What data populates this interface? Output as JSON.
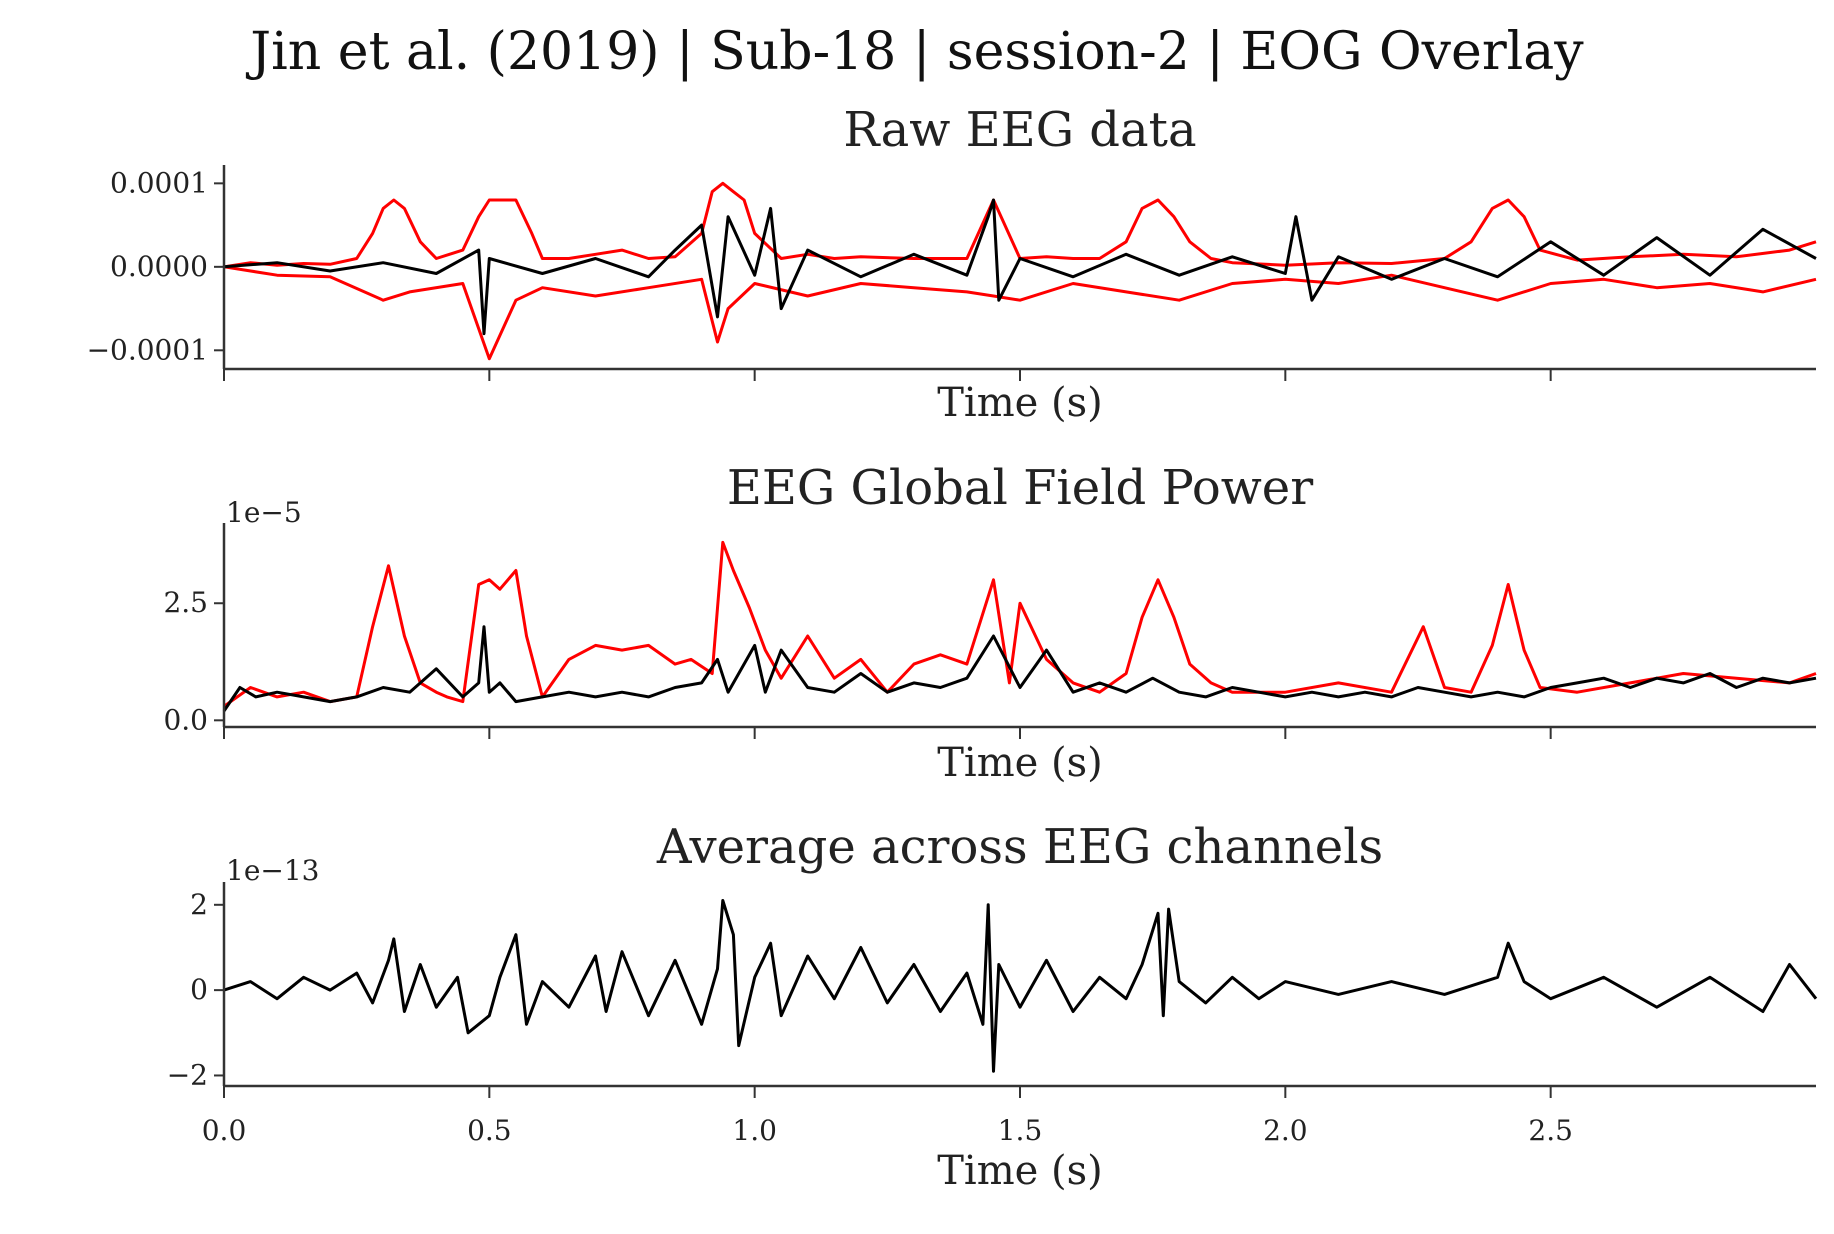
{
  "figure": {
    "suptitle": "Jin et al. (2019) | Sub-18 | session-2 | EOG Overlay",
    "colors": {
      "eog": "#ff0000",
      "clean": "#000000",
      "axis": "#333333"
    }
  },
  "chart_data": [
    {
      "type": "line",
      "title": "Raw EEG data",
      "xlabel": "Time (s)",
      "ylabel": "",
      "offset_label": "",
      "xlim": [
        0,
        3
      ],
      "ylim": [
        -0.00012,
        0.00011
      ],
      "yticks": [
        -0.0001,
        0.0,
        0.0001
      ],
      "ytick_labels": [
        "−0.0001",
        "0.0000",
        "0.0001"
      ],
      "xticks": [
        0.0,
        0.5,
        1.0,
        1.5,
        2.0,
        2.5
      ],
      "xtick_labels": [
        "",
        "",
        "",
        "",
        "",
        ""
      ],
      "series": [
        {
          "color": "#ff0000",
          "width": 3,
          "x": [
            0,
            0.05,
            0.1,
            0.15,
            0.2,
            0.25,
            0.28,
            0.3,
            0.32,
            0.34,
            0.37,
            0.4,
            0.45,
            0.48,
            0.5,
            0.52,
            0.55,
            0.58,
            0.6,
            0.65,
            0.7,
            0.75,
            0.8,
            0.85,
            0.9,
            0.92,
            0.94,
            0.96,
            0.98,
            1.0,
            1.05,
            1.1,
            1.15,
            1.2,
            1.3,
            1.4,
            1.45,
            1.5,
            1.55,
            1.6,
            1.65,
            1.7,
            1.73,
            1.76,
            1.79,
            1.82,
            1.86,
            1.9,
            2.0,
            2.1,
            2.2,
            2.3,
            2.35,
            2.39,
            2.42,
            2.45,
            2.48,
            2.55,
            2.65,
            2.75,
            2.85,
            2.95,
            3.0
          ],
          "y": [
            0,
            5e-06,
            2e-06,
            4e-06,
            3e-06,
            1e-05,
            4e-05,
            7e-05,
            8e-05,
            7e-05,
            3e-05,
            1e-05,
            2e-05,
            6e-05,
            8e-05,
            8e-05,
            8e-05,
            4e-05,
            1e-05,
            1e-05,
            1.5e-05,
            2e-05,
            1e-05,
            1.2e-05,
            4e-05,
            9e-05,
            0.0001,
            9e-05,
            8e-05,
            4e-05,
            1e-05,
            1.5e-05,
            1e-05,
            1.2e-05,
            1e-05,
            1e-05,
            8e-05,
            1e-05,
            1.2e-05,
            1e-05,
            1e-05,
            3e-05,
            7e-05,
            8e-05,
            6e-05,
            3e-05,
            1e-05,
            5e-06,
            2e-06,
            5e-06,
            4e-06,
            1e-05,
            3e-05,
            7e-05,
            8e-05,
            6e-05,
            2e-05,
            8e-06,
            1.2e-05,
            1.5e-05,
            1.2e-05,
            2e-05,
            3e-05
          ]
        },
        {
          "color": "#ff0000",
          "width": 3,
          "x": [
            0,
            0.1,
            0.2,
            0.3,
            0.35,
            0.45,
            0.5,
            0.55,
            0.6,
            0.7,
            0.8,
            0.9,
            0.93,
            0.95,
            1.0,
            1.1,
            1.2,
            1.3,
            1.4,
            1.45,
            1.5,
            1.6,
            1.7,
            1.8,
            1.9,
            2.0,
            2.1,
            2.2,
            2.3,
            2.4,
            2.5,
            2.6,
            2.7,
            2.8,
            2.9,
            3.0
          ],
          "y": [
            0,
            -1e-05,
            -1.2e-05,
            -4e-05,
            -3e-05,
            -2e-05,
            -0.00011,
            -4e-05,
            -2.5e-05,
            -3.5e-05,
            -2.5e-05,
            -1.5e-05,
            -9e-05,
            -5e-05,
            -2e-05,
            -3.5e-05,
            -2e-05,
            -2.5e-05,
            -3e-05,
            -3.5e-05,
            -4e-05,
            -2e-05,
            -3e-05,
            -4e-05,
            -2e-05,
            -1.5e-05,
            -2e-05,
            -1e-05,
            -2.5e-05,
            -4e-05,
            -2e-05,
            -1.5e-05,
            -2.5e-05,
            -2e-05,
            -3e-05,
            -1.5e-05
          ]
        },
        {
          "color": "#000000",
          "width": 3,
          "x": [
            0,
            0.1,
            0.2,
            0.3,
            0.4,
            0.48,
            0.49,
            0.5,
            0.6,
            0.7,
            0.8,
            0.85,
            0.9,
            0.93,
            0.95,
            1.0,
            1.03,
            1.05,
            1.1,
            1.2,
            1.3,
            1.4,
            1.44,
            1.45,
            1.46,
            1.5,
            1.6,
            1.7,
            1.8,
            1.9,
            2.0,
            2.02,
            2.05,
            2.1,
            2.2,
            2.3,
            2.4,
            2.5,
            2.6,
            2.7,
            2.8,
            2.9,
            3.0
          ],
          "y": [
            0,
            5e-06,
            -5e-06,
            5e-06,
            -8e-06,
            2e-05,
            -8e-05,
            1e-05,
            -8e-06,
            1e-05,
            -1.2e-05,
            2e-05,
            5e-05,
            -6e-05,
            6e-05,
            -1e-05,
            7e-05,
            -5e-05,
            2e-05,
            -1.2e-05,
            1.5e-05,
            -1e-05,
            6e-05,
            8e-05,
            -4e-05,
            1e-05,
            -1.2e-05,
            1.5e-05,
            -1e-05,
            1.2e-05,
            -8e-06,
            6e-05,
            -4e-05,
            1.2e-05,
            -1.5e-05,
            1e-05,
            -1.2e-05,
            3e-05,
            -1e-05,
            3.5e-05,
            -1e-05,
            4.5e-05,
            1e-05
          ]
        }
      ]
    },
    {
      "type": "line",
      "title": "EEG Global Field Power",
      "xlabel": "Time (s)",
      "ylabel": "",
      "offset_label": "1e−5",
      "xlim": [
        0,
        3
      ],
      "ylim": [
        -0.1,
        4.0
      ],
      "yticks": [
        0.0,
        2.5
      ],
      "ytick_labels": [
        "0.0",
        "2.5"
      ],
      "xticks": [
        0.0,
        0.5,
        1.0,
        1.5,
        2.0,
        2.5
      ],
      "xtick_labels": [
        "",
        "",
        "",
        "",
        "",
        ""
      ],
      "series": [
        {
          "color": "#ff0000",
          "width": 3,
          "x": [
            0,
            0.05,
            0.1,
            0.15,
            0.2,
            0.25,
            0.28,
            0.31,
            0.34,
            0.37,
            0.4,
            0.42,
            0.45,
            0.48,
            0.5,
            0.52,
            0.55,
            0.57,
            0.6,
            0.65,
            0.7,
            0.75,
            0.8,
            0.85,
            0.88,
            0.92,
            0.94,
            0.96,
            0.99,
            1.02,
            1.05,
            1.1,
            1.15,
            1.2,
            1.25,
            1.3,
            1.35,
            1.4,
            1.45,
            1.48,
            1.5,
            1.55,
            1.6,
            1.65,
            1.7,
            1.73,
            1.76,
            1.79,
            1.82,
            1.86,
            1.9,
            2.0,
            2.1,
            2.2,
            2.26,
            2.3,
            2.35,
            2.39,
            2.42,
            2.45,
            2.48,
            2.55,
            2.65,
            2.75,
            2.85,
            2.95,
            3.0
          ],
          "y": [
            0.3,
            0.7,
            0.5,
            0.6,
            0.4,
            0.5,
            2.0,
            3.3,
            1.8,
            0.8,
            0.6,
            0.5,
            0.4,
            2.9,
            3.0,
            2.8,
            3.2,
            1.8,
            0.5,
            1.3,
            1.6,
            1.5,
            1.6,
            1.2,
            1.3,
            1.0,
            3.8,
            3.2,
            2.4,
            1.5,
            0.9,
            1.8,
            0.9,
            1.3,
            0.6,
            1.2,
            1.4,
            1.2,
            3.0,
            0.8,
            2.5,
            1.3,
            0.8,
            0.6,
            1.0,
            2.2,
            3.0,
            2.2,
            1.2,
            0.8,
            0.6,
            0.6,
            0.8,
            0.6,
            2.0,
            0.7,
            0.6,
            1.6,
            2.9,
            1.5,
            0.7,
            0.6,
            0.8,
            1.0,
            0.9,
            0.8,
            1.0
          ]
        },
        {
          "color": "#000000",
          "width": 3,
          "x": [
            0,
            0.03,
            0.06,
            0.1,
            0.15,
            0.2,
            0.25,
            0.3,
            0.35,
            0.4,
            0.45,
            0.48,
            0.49,
            0.5,
            0.52,
            0.55,
            0.6,
            0.65,
            0.7,
            0.75,
            0.8,
            0.85,
            0.9,
            0.93,
            0.95,
            1.0,
            1.02,
            1.05,
            1.1,
            1.15,
            1.2,
            1.25,
            1.3,
            1.35,
            1.4,
            1.45,
            1.5,
            1.55,
            1.6,
            1.65,
            1.7,
            1.75,
            1.8,
            1.85,
            1.9,
            1.95,
            2.0,
            2.05,
            2.1,
            2.15,
            2.2,
            2.25,
            2.3,
            2.35,
            2.4,
            2.45,
            2.5,
            2.55,
            2.6,
            2.65,
            2.7,
            2.75,
            2.8,
            2.85,
            2.9,
            2.95,
            3.0
          ],
          "y": [
            0.2,
            0.7,
            0.5,
            0.6,
            0.5,
            0.4,
            0.5,
            0.7,
            0.6,
            1.1,
            0.5,
            0.8,
            2.0,
            0.6,
            0.8,
            0.4,
            0.5,
            0.6,
            0.5,
            0.6,
            0.5,
            0.7,
            0.8,
            1.3,
            0.6,
            1.6,
            0.6,
            1.5,
            0.7,
            0.6,
            1.0,
            0.6,
            0.8,
            0.7,
            0.9,
            1.8,
            0.7,
            1.5,
            0.6,
            0.8,
            0.6,
            0.9,
            0.6,
            0.5,
            0.7,
            0.6,
            0.5,
            0.6,
            0.5,
            0.6,
            0.5,
            0.7,
            0.6,
            0.5,
            0.6,
            0.5,
            0.7,
            0.8,
            0.9,
            0.7,
            0.9,
            0.8,
            1.0,
            0.7,
            0.9,
            0.8,
            0.9
          ]
        }
      ]
    },
    {
      "type": "line",
      "title": "Average across EEG channels",
      "xlabel": "Time (s)",
      "ylabel": "",
      "offset_label": "1e−13",
      "xlim": [
        0,
        3
      ],
      "ylim": [
        -2.2,
        2.3
      ],
      "yticks": [
        -2,
        0,
        2
      ],
      "ytick_labels": [
        "−2",
        "0",
        "2"
      ],
      "xticks": [
        0.0,
        0.5,
        1.0,
        1.5,
        2.0,
        2.5
      ],
      "xtick_labels": [
        "0.0",
        "0.5",
        "1.0",
        "1.5",
        "2.0",
        "2.5"
      ],
      "series": [
        {
          "color": "#000000",
          "width": 3,
          "x": [
            0,
            0.05,
            0.1,
            0.15,
            0.2,
            0.25,
            0.28,
            0.31,
            0.32,
            0.34,
            0.37,
            0.4,
            0.44,
            0.46,
            0.5,
            0.52,
            0.55,
            0.57,
            0.6,
            0.65,
            0.7,
            0.72,
            0.75,
            0.8,
            0.85,
            0.9,
            0.93,
            0.94,
            0.96,
            0.97,
            1.0,
            1.03,
            1.05,
            1.1,
            1.15,
            1.2,
            1.25,
            1.3,
            1.35,
            1.4,
            1.43,
            1.44,
            1.45,
            1.46,
            1.5,
            1.55,
            1.6,
            1.65,
            1.7,
            1.73,
            1.76,
            1.77,
            1.78,
            1.8,
            1.85,
            1.9,
            1.95,
            2.0,
            2.1,
            2.2,
            2.3,
            2.4,
            2.42,
            2.45,
            2.5,
            2.6,
            2.7,
            2.8,
            2.9,
            2.95,
            3.0
          ],
          "y": [
            0,
            0.2,
            -0.2,
            0.3,
            0,
            0.4,
            -0.3,
            0.7,
            1.2,
            -0.5,
            0.6,
            -0.4,
            0.3,
            -1.0,
            -0.6,
            0.3,
            1.3,
            -0.8,
            0.2,
            -0.4,
            0.8,
            -0.5,
            0.9,
            -0.6,
            0.7,
            -0.8,
            0.5,
            2.1,
            1.3,
            -1.3,
            0.3,
            1.1,
            -0.6,
            0.8,
            -0.2,
            1.0,
            -0.3,
            0.6,
            -0.5,
            0.4,
            -0.8,
            2.0,
            -1.9,
            0.6,
            -0.4,
            0.7,
            -0.5,
            0.3,
            -0.2,
            0.6,
            1.8,
            -0.6,
            1.9,
            0.2,
            -0.3,
            0.3,
            -0.2,
            0.2,
            -0.1,
            0.2,
            -0.1,
            0.3,
            1.1,
            0.2,
            -0.2,
            0.3,
            -0.4,
            0.3,
            -0.5,
            0.6,
            -0.2
          ]
        }
      ]
    }
  ]
}
